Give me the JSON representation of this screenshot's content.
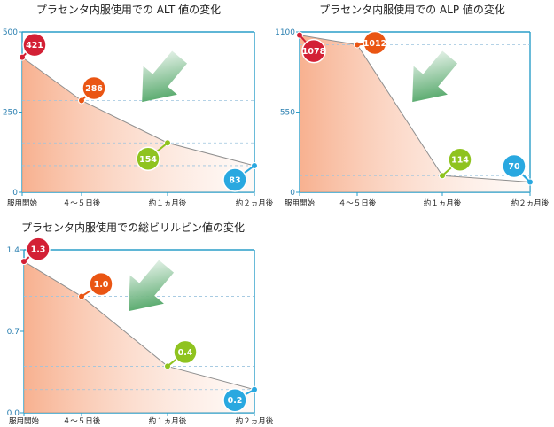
{
  "chart_data": [
    {
      "type": "line",
      "title": "プラセンタ内服使用での ALT 値の変化",
      "categories": [
        "服用開始",
        "４～５日後",
        "約１ヵ月後",
        "約２ヵ月後"
      ],
      "values": [
        421,
        286,
        154,
        83
      ],
      "value_labels": [
        "421",
        "286",
        "154",
        "83"
      ],
      "ylim": [
        0,
        500
      ],
      "yticks": [
        "0",
        "250",
        "500"
      ],
      "ytick_values": [
        0,
        250,
        500
      ],
      "grid": true,
      "marker_colors": [
        "#d32035",
        "#ea5513",
        "#8fc31f",
        "#29a8e0"
      ]
    },
    {
      "type": "line",
      "title": "プラセンタ内服使用での ALP 値の変化",
      "categories": [
        "服用開始",
        "４～５日後",
        "約１ヵ月後",
        "約２ヵ月後"
      ],
      "values": [
        1078,
        1012,
        114,
        70
      ],
      "value_labels": [
        "1078",
        "1012",
        "114",
        "70"
      ],
      "ylim": [
        0,
        1100
      ],
      "yticks": [
        "0",
        "550",
        "1100"
      ],
      "ytick_values": [
        0,
        550,
        1100
      ],
      "grid": true,
      "marker_colors": [
        "#d32035",
        "#ea5513",
        "#8fc31f",
        "#29a8e0"
      ]
    },
    {
      "type": "line",
      "title": "プラセンタ内服使用での総ビリルビン値の変化",
      "categories": [
        "服用開始",
        "４～５日後",
        "約１ヵ月後",
        "約２ヵ月後"
      ],
      "values": [
        1.3,
        1.0,
        0.4,
        0.2
      ],
      "value_labels": [
        "1.3",
        "1.0",
        "0.4",
        "0.2"
      ],
      "ylim": [
        0,
        1.4
      ],
      "yticks": [
        "0.0",
        "0.7",
        "1.4"
      ],
      "ytick_values": [
        0,
        0.7,
        1.4
      ],
      "grid": true,
      "marker_colors": [
        "#d32035",
        "#ea5513",
        "#8fc31f",
        "#29a8e0"
      ]
    }
  ]
}
